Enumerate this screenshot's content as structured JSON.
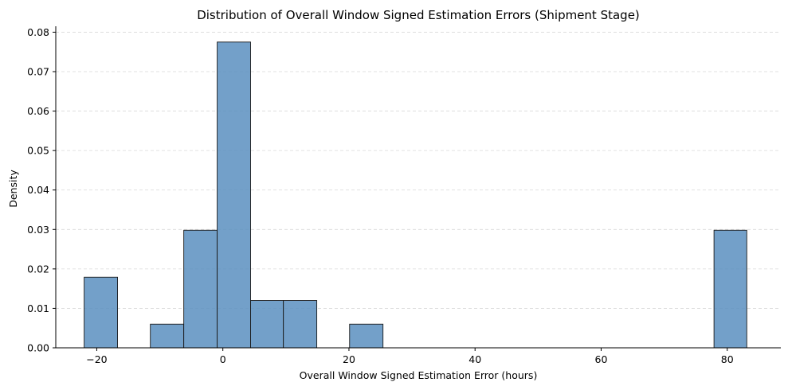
{
  "chart_data": {
    "type": "bar",
    "title": "Distribution of Overall Window Signed Estimation Errors (Shipment Stage)",
    "xlabel": "Overall Window Signed Estimation Error (hours)",
    "ylabel": "Density",
    "xlim": [
      -26.5,
      88.5
    ],
    "ylim": [
      0,
      0.0815
    ],
    "xticks": [
      -20,
      0,
      20,
      40,
      60,
      80
    ],
    "xtick_labels": [
      "−20",
      "0",
      "20",
      "40",
      "60",
      "80"
    ],
    "yticks": [
      0.0,
      0.01,
      0.02,
      0.03,
      0.04,
      0.05,
      0.06,
      0.07,
      0.08
    ],
    "ytick_labels": [
      "0.00",
      "0.01",
      "0.02",
      "0.03",
      "0.04",
      "0.05",
      "0.06",
      "0.07",
      "0.08"
    ],
    "bins": [
      {
        "x0": -22.0,
        "x1": -16.7,
        "density": 0.0179
      },
      {
        "x0": -11.5,
        "x1": -6.2,
        "density": 0.006
      },
      {
        "x0": -6.2,
        "x1": -0.9,
        "density": 0.0298
      },
      {
        "x0": -0.9,
        "x1": 4.4,
        "density": 0.0775
      },
      {
        "x0": 4.4,
        "x1": 9.6,
        "density": 0.012
      },
      {
        "x0": 9.6,
        "x1": 14.9,
        "density": 0.012
      },
      {
        "x0": 20.1,
        "x1": 25.4,
        "density": 0.006
      },
      {
        "x0": 77.9,
        "x1": 83.1,
        "density": 0.0298
      }
    ],
    "grid": "y-dashed",
    "colors": {
      "bar_fill": "#5b8fbf",
      "bar_edge": "#1a1a1a",
      "grid": "#d9d9d9"
    }
  }
}
